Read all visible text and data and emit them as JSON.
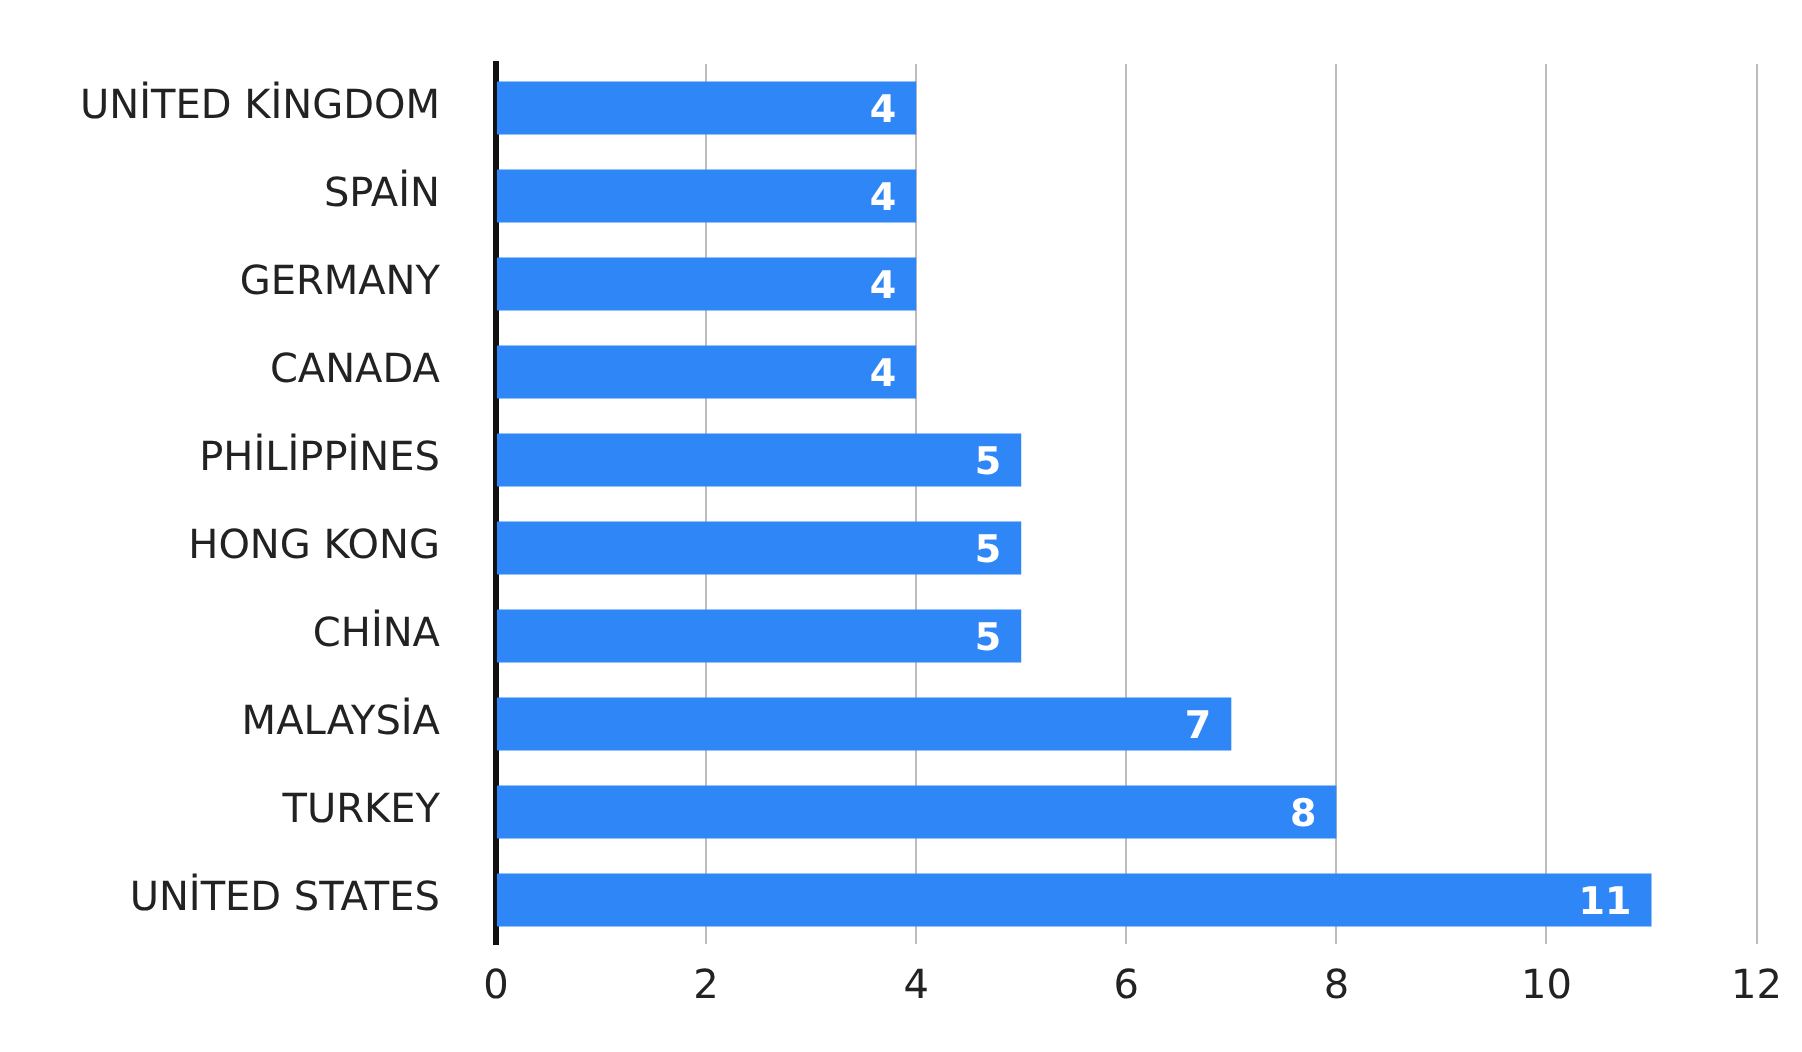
{
  "chart_data": {
    "type": "bar",
    "orientation": "horizontal",
    "categories": [
      "UNİTED KİNGDOM",
      "SPAİN",
      "GERMANY",
      "CANADA",
      "PHİLİPPİNES",
      "HONG KONG",
      "CHİNA",
      "MALAYSİA",
      "TURKEY",
      "UNİTED STATES"
    ],
    "values": [
      4,
      4,
      4,
      4,
      5,
      5,
      5,
      7,
      8,
      11
    ],
    "color": "#2f86f6",
    "xlim": [
      0,
      12
    ],
    "xticks": [
      0,
      2,
      4,
      6,
      8,
      10,
      12
    ],
    "grid": "x",
    "data_labels": true
  }
}
